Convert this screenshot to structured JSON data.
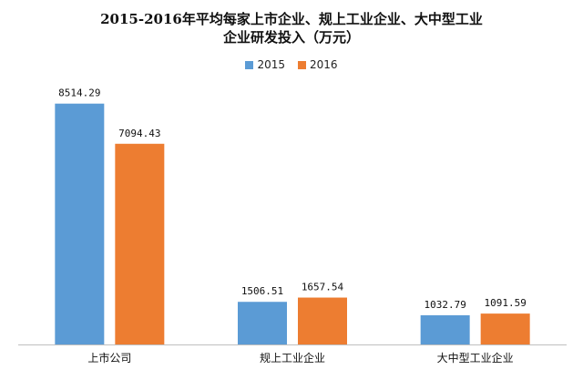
{
  "chart_data": {
    "type": "bar",
    "title_line1": "2015-2016年平均每家上市企业、规上工业企业、大中型工业",
    "title_line2": "企业研发投入（万元）",
    "categories": [
      "上市公司",
      "规上工业企业",
      "大中型工业企业"
    ],
    "series": [
      {
        "name": "2015",
        "color": "#5B9BD5",
        "values": [
          8514.29,
          1506.51,
          1032.79
        ],
        "labels": [
          "8514.29",
          "1506.51",
          "1032.79"
        ]
      },
      {
        "name": "2016",
        "color": "#ED7D31",
        "values": [
          7094.43,
          1657.54,
          1091.59
        ],
        "labels": [
          "7094.43",
          "1657.54",
          "1091.59"
        ]
      }
    ],
    "ylim": [
      0,
      9600
    ],
    "legend_position": "top-center",
    "grid": false
  }
}
